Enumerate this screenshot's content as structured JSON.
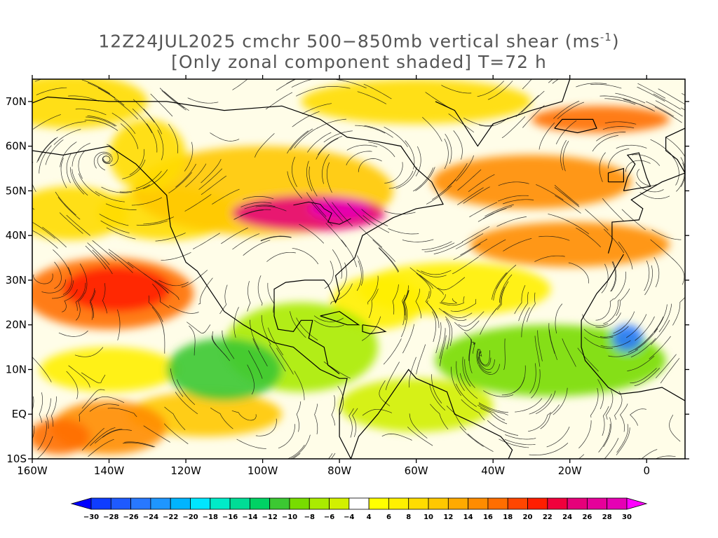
{
  "title": {
    "line1_prefix": "12Z24JUL2025 cmchr 500−850mb vertical shear (ms",
    "line1_sup": "-1",
    "line1_suffix": ")",
    "line2": "[Only zonal component shaded] T=72 h"
  },
  "map": {
    "lon_range": [
      -160,
      10
    ],
    "lat_range": [
      -10,
      75
    ],
    "lat_ticks": [
      {
        "value": 70,
        "label": "70N"
      },
      {
        "value": 60,
        "label": "60N"
      },
      {
        "value": 50,
        "label": "50N"
      },
      {
        "value": 40,
        "label": "40N"
      },
      {
        "value": 30,
        "label": "30N"
      },
      {
        "value": 20,
        "label": "20N"
      },
      {
        "value": 10,
        "label": "10N"
      },
      {
        "value": 0,
        "label": "EQ"
      },
      {
        "value": -10,
        "label": "10S"
      }
    ],
    "lon_ticks": [
      {
        "value": -160,
        "label": "160W"
      },
      {
        "value": -140,
        "label": "140W"
      },
      {
        "value": -120,
        "label": "120W"
      },
      {
        "value": -100,
        "label": "100W"
      },
      {
        "value": -80,
        "label": "80W"
      },
      {
        "value": -60,
        "label": "60W"
      },
      {
        "value": -40,
        "label": "40W"
      },
      {
        "value": -20,
        "label": "20W"
      },
      {
        "value": 0,
        "label": "0"
      }
    ],
    "shading_regions": [
      {
        "lon": -140,
        "lat": 27,
        "rx": 22,
        "ry": 8,
        "value": 16
      },
      {
        "lon": -138,
        "lat": 28,
        "rx": 14,
        "ry": 5,
        "value": 20
      },
      {
        "lon": -100,
        "lat": 50,
        "rx": 34,
        "ry": 10,
        "value": 10
      },
      {
        "lon": -88,
        "lat": 45,
        "rx": 20,
        "ry": 4,
        "value": 24
      },
      {
        "lon": -80,
        "lat": 46,
        "rx": 8,
        "ry": 2.5,
        "value": 28
      },
      {
        "lon": -30,
        "lat": 52,
        "rx": 26,
        "ry": 6,
        "value": 14
      },
      {
        "lon": -20,
        "lat": 38,
        "rx": 26,
        "ry": 5,
        "value": 14
      },
      {
        "lon": -12,
        "lat": 66,
        "rx": 18,
        "ry": 3,
        "value": 16
      },
      {
        "lon": -140,
        "lat": -3,
        "rx": 15,
        "ry": 6,
        "value": 14
      },
      {
        "lon": -153,
        "lat": -5,
        "rx": 8,
        "ry": 4,
        "value": 16
      },
      {
        "lon": -130,
        "lat": 58,
        "rx": 10,
        "ry": 8,
        "value": 8
      },
      {
        "lon": -90,
        "lat": 15,
        "rx": 20,
        "ry": 10,
        "value": -8
      },
      {
        "lon": -25,
        "lat": 12,
        "rx": 30,
        "ry": 8,
        "value": -10
      },
      {
        "lon": -110,
        "lat": 10,
        "rx": 15,
        "ry": 7,
        "value": -12
      },
      {
        "lon": -60,
        "lat": 2,
        "rx": 20,
        "ry": 6,
        "value": -6
      },
      {
        "lon": -5,
        "lat": 17,
        "rx": 4,
        "ry": 3,
        "value": -26
      }
    ]
  },
  "colorbar": {
    "levels": [
      -30,
      -28,
      -26,
      -24,
      -22,
      -20,
      -18,
      -16,
      -14,
      -12,
      -10,
      -8,
      -6,
      -4,
      4,
      6,
      8,
      10,
      12,
      14,
      16,
      18,
      20,
      22,
      24,
      26,
      28,
      30
    ],
    "labels": [
      "−30",
      "−28",
      "−26",
      "−24",
      "−22",
      "−20",
      "−18",
      "−16",
      "−14",
      "−12",
      "−10",
      "−8",
      "−6",
      "−4",
      "4",
      "6",
      "8",
      "10",
      "12",
      "14",
      "16",
      "18",
      "20",
      "22",
      "24",
      "26",
      "28",
      "30"
    ],
    "colors": [
      "#0000ff",
      "#0f3dff",
      "#1e5aff",
      "#2878ff",
      "#1e96ff",
      "#00b4ff",
      "#00e6ff",
      "#00ebc8",
      "#00dc96",
      "#00d264",
      "#3cc832",
      "#78dc00",
      "#aaeb00",
      "#d2f000",
      "#ffffff",
      "#ffff00",
      "#fff000",
      "#ffdc00",
      "#ffc800",
      "#ffaa00",
      "#ff8c00",
      "#ff6e00",
      "#ff4600",
      "#ff1e00",
      "#f0003c",
      "#e6007a",
      "#e6009a",
      "#e600b4",
      "#ff00ff"
    ]
  }
}
